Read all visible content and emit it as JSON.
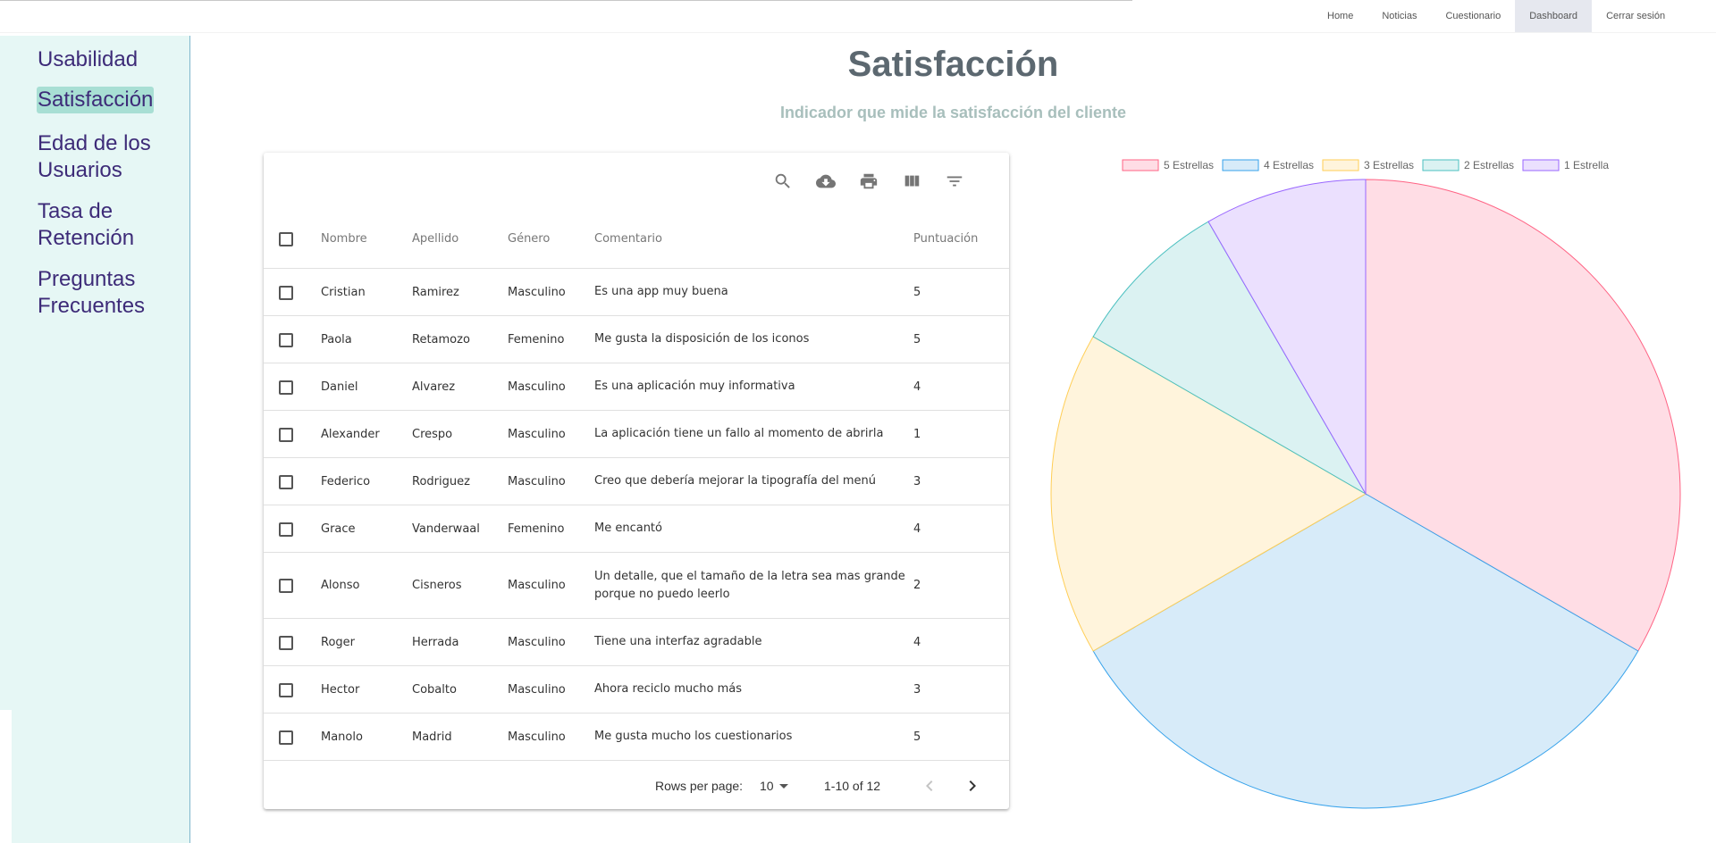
{
  "topnav": {
    "items": [
      {
        "label": "Home",
        "active": false
      },
      {
        "label": "Noticias",
        "active": false
      },
      {
        "label": "Cuestionario",
        "active": false
      },
      {
        "label": "Dashboard",
        "active": true
      },
      {
        "label": "Cerrar sesión",
        "active": false
      }
    ]
  },
  "sidebar": {
    "items": [
      {
        "label_lines": [
          "Usabilidad"
        ],
        "active": false
      },
      {
        "label_lines": [
          "Satisfacción"
        ],
        "active": true
      },
      {
        "label_lines": [
          "Edad de los",
          "Usuarios"
        ],
        "active": false
      },
      {
        "label_lines": [
          "Tasa de",
          "Retención"
        ],
        "active": false
      },
      {
        "label_lines": [
          "Preguntas",
          "Frecuentes"
        ],
        "active": false
      }
    ]
  },
  "page": {
    "title": "Satisfacción",
    "subtitle": "Indicador que mide la satisfacción del cliente"
  },
  "toolbar": {
    "icons": [
      "search-icon",
      "download-icon",
      "print-icon",
      "view-columns-icon",
      "filter-icon"
    ]
  },
  "table": {
    "columns": [
      "Nombre",
      "Apellido",
      "Género",
      "Comentario",
      "Puntuación"
    ],
    "rows": [
      [
        "Cristian",
        "Ramirez",
        "Masculino",
        "Es una app muy buena",
        "5"
      ],
      [
        "Paola",
        "Retamozo",
        "Femenino",
        "Me gusta la disposición de los iconos",
        "5"
      ],
      [
        "Daniel",
        "Alvarez",
        "Masculino",
        "Es una aplicación muy informativa",
        "4"
      ],
      [
        "Alexander",
        "Crespo",
        "Masculino",
        "La aplicación tiene un fallo al momento de abrirla",
        "1"
      ],
      [
        "Federico",
        "Rodriguez",
        "Masculino",
        "Creo que debería mejorar la tipografía del menú",
        "3"
      ],
      [
        "Grace",
        "Vanderwaal",
        "Femenino",
        "Me encantó",
        "4"
      ],
      [
        "Alonso",
        "Cisneros",
        "Masculino",
        "Un detalle, que el tamaño de la letra sea mas grande porque no puedo leerlo",
        "2"
      ],
      [
        "Roger",
        "Herrada",
        "Masculino",
        "Tiene una interfaz agradable",
        "4"
      ],
      [
        "Hector",
        "Cobalto",
        "Masculino",
        "Ahora reciclo mucho más",
        "3"
      ],
      [
        "Manolo",
        "Madrid",
        "Masculino",
        "Me gusta mucho los cuestionarios",
        "5"
      ]
    ],
    "footer": {
      "rows_per_page_label": "Rows per page:",
      "rows_per_page_value": "10",
      "range": "1-10 of 12"
    }
  },
  "chart_data": {
    "type": "pie",
    "labels": [
      "5 Estrellas",
      "4 Estrellas",
      "3 Estrellas",
      "2 Estrellas",
      "1 Estrella"
    ],
    "values": [
      4,
      4,
      2,
      1,
      1
    ],
    "fill_colors": [
      "#ffdde5",
      "#d7ebf9",
      "#fff4dc",
      "#dbf2f2",
      "#ebe0fe"
    ],
    "border_colors": [
      "#ff6384",
      "#36a2eb",
      "#ffce56",
      "#4bc0c0",
      "#9966ff"
    ],
    "legend_position": "top"
  }
}
